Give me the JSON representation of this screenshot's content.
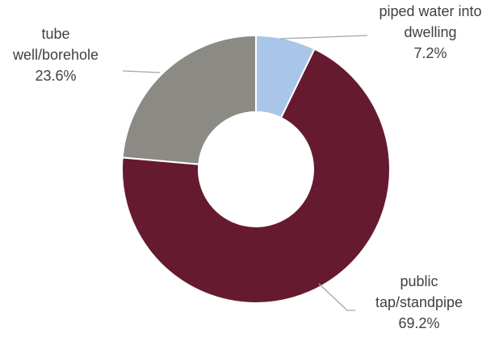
{
  "chart_data": {
    "type": "pie",
    "donut": true,
    "title": "",
    "slices": [
      {
        "label_lines": [
          "piped water into",
          "dwelling"
        ],
        "value": 7.2,
        "value_label": "7.2%",
        "color": "#a9c6e8"
      },
      {
        "label_lines": [
          "public",
          "tap/standpipe"
        ],
        "value": 69.2,
        "value_label": "69.2%",
        "color": "#661a30"
      },
      {
        "label_lines": [
          "tube",
          "well/borehole"
        ],
        "value": 23.6,
        "value_label": "23.6%",
        "color": "#8c8a85"
      }
    ],
    "start_angle": "12 o'clock",
    "direction": "clockwise",
    "slice_border_color": "#ffffff",
    "leader_line_color": "#a6a6a6"
  }
}
